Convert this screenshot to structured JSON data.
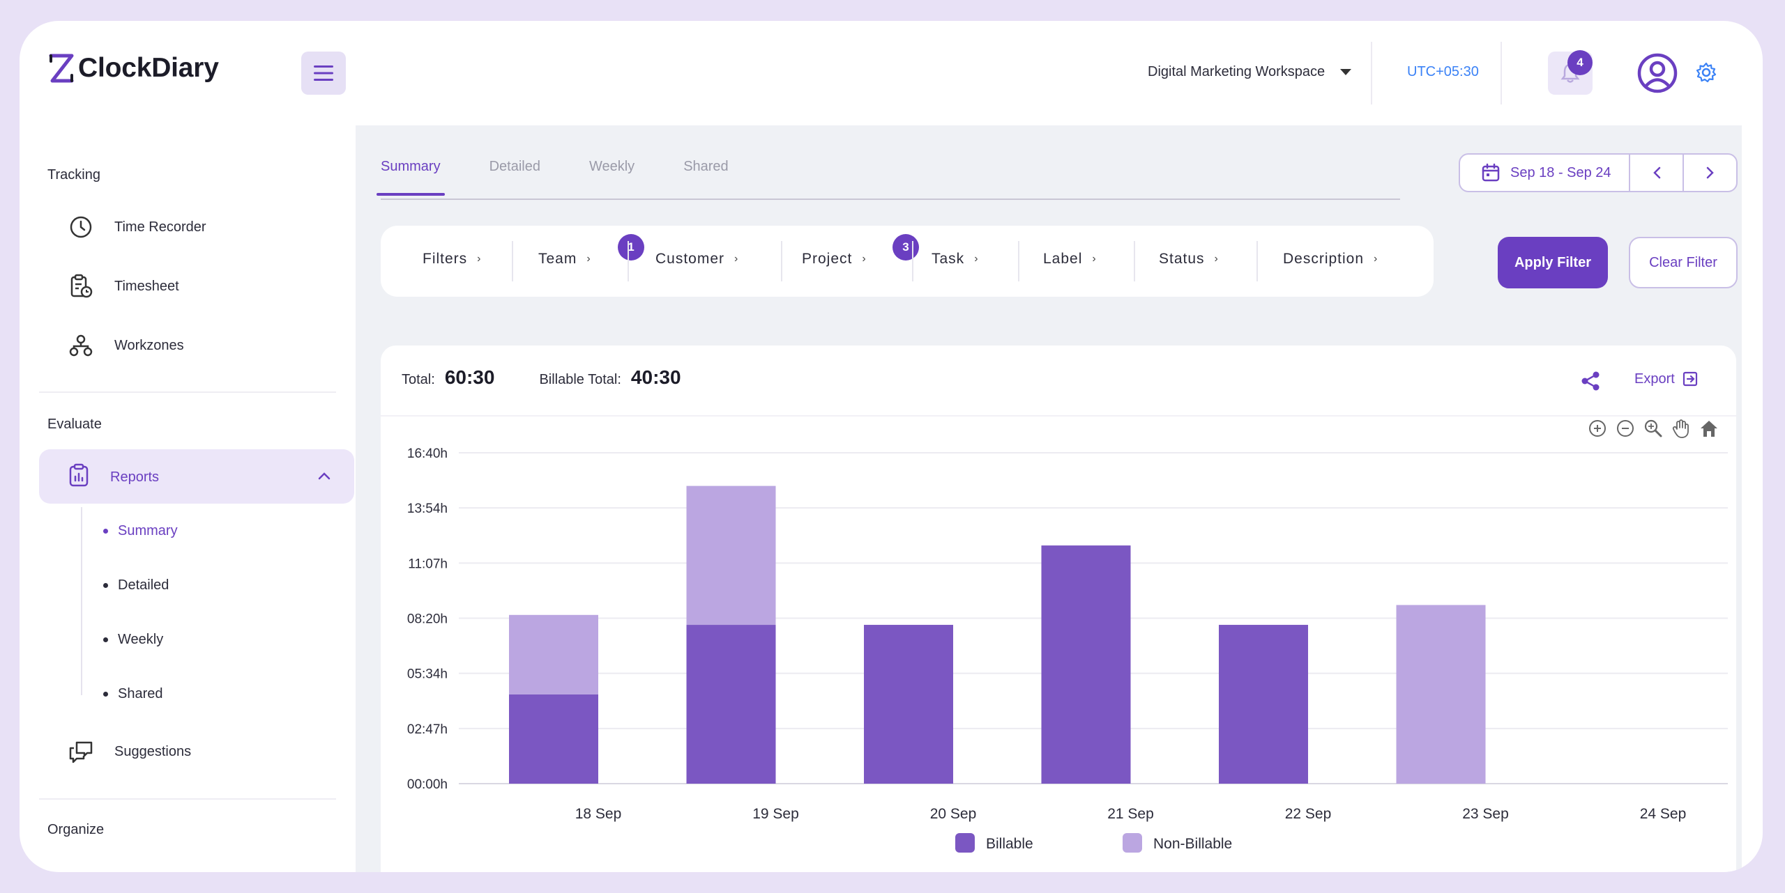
{
  "app": {
    "logo_text": "ClockDiary"
  },
  "header": {
    "workspace": "Digital Marketing Workspace",
    "timezone": "UTC+05:30",
    "notification_count": "4"
  },
  "sidebar": {
    "sections": {
      "tracking": "Tracking",
      "evaluate": "Evaluate",
      "organize": "Organize"
    },
    "tracking_items": [
      {
        "label": "Time Recorder",
        "icon": "clock-icon"
      },
      {
        "label": "Timesheet",
        "icon": "timesheet-icon"
      },
      {
        "label": "Workzones",
        "icon": "workzones-icon"
      }
    ],
    "reports": {
      "label": "Reports",
      "icon": "clipboard-report-icon"
    },
    "report_subitems": [
      "Summary",
      "Detailed",
      "Weekly",
      "Shared"
    ],
    "suggestions": {
      "label": "Suggestions",
      "icon": "chat-bubbles-icon"
    }
  },
  "tabs": [
    "Summary",
    "Detailed",
    "Weekly",
    "Shared"
  ],
  "date_range": "Sep 18 - Sep 24",
  "filters": {
    "items": [
      "Filters",
      "Team",
      "Customer",
      "Project",
      "Task",
      "Label",
      "Status",
      "Description"
    ],
    "team_badge": "1",
    "project_badge": "3",
    "apply_label": "Apply Filter",
    "clear_label": "Clear Filter"
  },
  "summary": {
    "total_label": "Total:",
    "total_value": "60:30",
    "billable_label": "Billable Total:",
    "billable_value": "40:30",
    "export_label": "Export"
  },
  "colors": {
    "accent": "#6a3fc1",
    "billable": "#7b57c2",
    "non_billable": "#bba6e1"
  },
  "chart_data": {
    "type": "bar",
    "stacked": true,
    "categories": [
      "18 Sep",
      "19 Sep",
      "20 Sep",
      "21 Sep",
      "22 Sep",
      "23 Sep",
      "24 Sep"
    ],
    "series": [
      {
        "name": "Billable",
        "values": [
          4.5,
          8.0,
          8.0,
          12.0,
          8.0,
          0,
          0
        ]
      },
      {
        "name": "Non-Billable",
        "values": [
          4.0,
          7.0,
          0,
          0,
          0,
          9.0,
          0
        ]
      }
    ],
    "ytick_labels": [
      "00:00h",
      "02:47h",
      "05:34h",
      "08:20h",
      "11:07h",
      "13:54h",
      "16:40h"
    ],
    "ylim": [
      0,
      16.67
    ],
    "grid": true,
    "legend_position": "bottom-center"
  }
}
